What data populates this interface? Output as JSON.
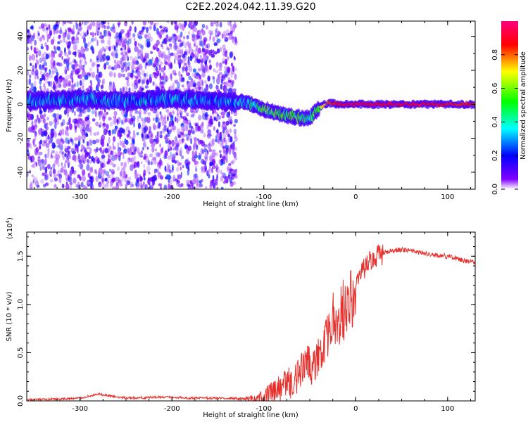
{
  "title": "C2E2.2024.042.11.39.G20",
  "chart_data": [
    {
      "type": "heatmap",
      "title": "C2E2.2024.042.11.39.G20",
      "xlabel": "Height of straight line (km)",
      "ylabel": "Frequency (Hz)",
      "xlim": [
        -358,
        130
      ],
      "ylim": [
        -50,
        49
      ],
      "xticks": [
        -300,
        -200,
        -100,
        0,
        100
      ],
      "yticks": [
        -40,
        -20,
        0,
        20,
        40
      ],
      "xtick_labels": [
        "-300",
        "-200",
        "-100",
        "0",
        "100"
      ],
      "ytick_labels": [
        "-40",
        "-20",
        "0",
        "20",
        "40"
      ],
      "colorbar": {
        "label": "Normalized spectral amplitude",
        "range": [
          0,
          1
        ],
        "ticks": [
          0,
          0.2,
          0.4,
          0.6,
          0.8
        ],
        "tick_labels": [
          "0.0",
          "0.2",
          "0.4",
          "0.6",
          "0.8"
        ],
        "colors": [
          "#ffffff",
          "#8000ff",
          "#0000ff",
          "#00ffff",
          "#00ff00",
          "#ffff00",
          "#ff0000",
          "#ff0080"
        ]
      },
      "ridge": {
        "height_km": [
          -358,
          -300,
          -250,
          -200,
          -150,
          -120,
          -100,
          -80,
          -60,
          -50,
          -40,
          -30,
          -20,
          -10,
          0,
          50,
          130
        ],
        "frequency_hz": [
          2,
          3,
          2,
          3,
          2,
          1,
          -3,
          -6,
          -8,
          -8,
          -2,
          1,
          0,
          0,
          0,
          0,
          0
        ],
        "peak_amplitude": [
          0.3,
          0.3,
          0.3,
          0.3,
          0.25,
          0.35,
          0.5,
          0.55,
          0.5,
          0.45,
          0.6,
          0.8,
          0.85,
          0.9,
          0.9,
          0.9,
          0.85
        ]
      }
    },
    {
      "type": "line",
      "xlabel": "Height of straight line (km)",
      "ylabel": "SNR (10 * v/v)",
      "scale_label": "(x10",
      "scale_exp": "4",
      "xlim": [
        -358,
        130
      ],
      "ylim": [
        0,
        1.75
      ],
      "xticks": [
        -300,
        -200,
        -100,
        0,
        100
      ],
      "yticks": [
        0,
        0.5,
        1.0,
        1.5
      ],
      "xtick_labels": [
        "-300",
        "-200",
        "-100",
        "0",
        "100"
      ],
      "ytick_labels": [
        "0.0",
        "0.5",
        "1.0",
        "1.5"
      ],
      "series": [
        {
          "name": "SNR",
          "color": "#e8302c",
          "x": [
            -358,
            -320,
            -300,
            -290,
            -280,
            -260,
            -240,
            -220,
            -200,
            -180,
            -160,
            -140,
            -120,
            -110,
            -100,
            -90,
            -80,
            -70,
            -60,
            -50,
            -40,
            -30,
            -25,
            -20,
            -15,
            -10,
            -5,
            0,
            10,
            20,
            30,
            40,
            50,
            60,
            80,
            100,
            110,
            120,
            130
          ],
          "y": [
            0.01,
            0.02,
            0.03,
            0.05,
            0.07,
            0.04,
            0.03,
            0.04,
            0.04,
            0.03,
            0.03,
            0.03,
            0.02,
            0.03,
            0.06,
            0.1,
            0.15,
            0.22,
            0.3,
            0.4,
            0.55,
            0.8,
            1.05,
            0.95,
            1.1,
            1.15,
            1.2,
            1.3,
            1.4,
            1.5,
            1.54,
            1.56,
            1.57,
            1.56,
            1.52,
            1.5,
            1.48,
            1.45,
            1.44
          ]
        }
      ]
    }
  ]
}
